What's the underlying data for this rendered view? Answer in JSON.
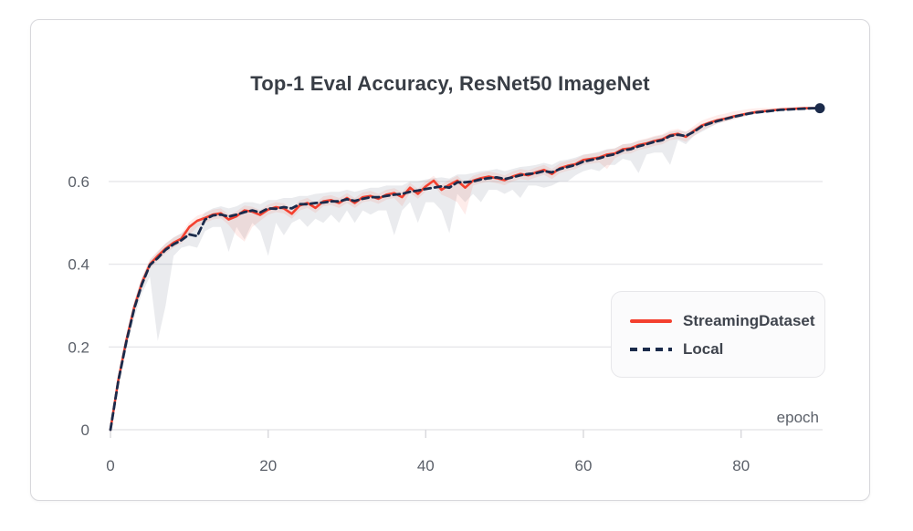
{
  "card": {
    "background": "#ffffff",
    "border_color": "#d8d8dc"
  },
  "chart_data": {
    "type": "line",
    "title": "Top-1 Eval Accuracy, ResNet50 ImageNet",
    "xlabel": "epoch",
    "ylabel": "",
    "x_start": 0,
    "x_step": 1,
    "xlim": [
      0,
      90
    ],
    "ylim": [
      0,
      0.8
    ],
    "grid": "horizontal",
    "x_ticks": [
      "0",
      "20",
      "40",
      "60",
      "80"
    ],
    "x_tick_values": [
      0,
      20,
      40,
      60,
      80
    ],
    "y_ticks": [
      "0",
      "0.2",
      "0.4",
      "0.6"
    ],
    "y_tick_values": [
      0,
      0.2,
      0.4,
      0.6
    ],
    "legend_position": "right-middle",
    "axis_color": "#e7e7ea",
    "tick_color": "#d8d8dc",
    "tick_label_color": "#5b6069",
    "series": [
      {
        "name": "StreamingDataset",
        "color": "#f4402f",
        "style": "solid",
        "values": [
          0.0,
          0.12,
          0.215,
          0.295,
          0.355,
          0.4,
          0.42,
          0.438,
          0.452,
          0.462,
          0.49,
          0.505,
          0.512,
          0.52,
          0.523,
          0.508,
          0.516,
          0.53,
          0.527,
          0.519,
          0.532,
          0.538,
          0.535,
          0.522,
          0.542,
          0.548,
          0.536,
          0.552,
          0.555,
          0.548,
          0.56,
          0.548,
          0.562,
          0.565,
          0.558,
          0.568,
          0.572,
          0.562,
          0.585,
          0.57,
          0.588,
          0.602,
          0.58,
          0.592,
          0.602,
          0.585,
          0.602,
          0.608,
          0.612,
          0.608,
          0.603,
          0.612,
          0.618,
          0.615,
          0.622,
          0.628,
          0.618,
          0.632,
          0.638,
          0.642,
          0.652,
          0.655,
          0.658,
          0.665,
          0.668,
          0.678,
          0.68,
          0.688,
          0.692,
          0.698,
          0.702,
          0.712,
          0.715,
          0.708,
          0.722,
          0.735,
          0.742,
          0.748,
          0.752,
          0.757,
          0.761,
          0.765,
          0.768,
          0.77,
          0.772,
          0.774,
          0.775,
          0.776,
          0.777,
          0.777,
          0.777
        ]
      },
      {
        "name": "Local",
        "color": "#1b2b4b",
        "style": "dashed",
        "values": [
          0.0,
          0.118,
          0.212,
          0.292,
          0.352,
          0.398,
          0.415,
          0.435,
          0.448,
          0.458,
          0.472,
          0.468,
          0.508,
          0.518,
          0.52,
          0.515,
          0.52,
          0.526,
          0.53,
          0.525,
          0.535,
          0.534,
          0.538,
          0.535,
          0.545,
          0.545,
          0.548,
          0.549,
          0.552,
          0.552,
          0.557,
          0.553,
          0.558,
          0.562,
          0.562,
          0.565,
          0.568,
          0.57,
          0.575,
          0.578,
          0.582,
          0.585,
          0.588,
          0.585,
          0.598,
          0.598,
          0.6,
          0.605,
          0.608,
          0.61,
          0.606,
          0.61,
          0.615,
          0.618,
          0.62,
          0.625,
          0.622,
          0.63,
          0.635,
          0.64,
          0.648,
          0.652,
          0.656,
          0.662,
          0.666,
          0.675,
          0.678,
          0.685,
          0.69,
          0.696,
          0.7,
          0.71,
          0.713,
          0.71,
          0.72,
          0.733,
          0.74,
          0.746,
          0.751,
          0.756,
          0.76,
          0.764,
          0.767,
          0.769,
          0.771,
          0.773,
          0.774,
          0.775,
          0.776,
          0.777,
          0.777
        ]
      }
    ],
    "bands": [
      {
        "name": "local-uncertainty-band",
        "color": "rgba(108,115,138,0.14)",
        "lower": [
          0.0,
          0.1,
          0.19,
          0.27,
          0.33,
          0.37,
          0.215,
          0.3,
          0.42,
          0.44,
          0.445,
          0.44,
          0.48,
          0.49,
          0.49,
          0.43,
          0.49,
          0.46,
          0.5,
          0.48,
          0.42,
          0.5,
          0.47,
          0.5,
          0.51,
          0.49,
          0.51,
          0.5,
          0.52,
          0.5,
          0.53,
          0.5,
          0.53,
          0.52,
          0.53,
          0.53,
          0.47,
          0.53,
          0.55,
          0.5,
          0.55,
          0.55,
          0.53,
          0.475,
          0.57,
          0.55,
          0.57,
          0.55,
          0.58,
          0.58,
          0.57,
          0.58,
          0.56,
          0.59,
          0.59,
          0.585,
          0.59,
          0.6,
          0.6,
          0.615,
          0.625,
          0.63,
          0.625,
          0.64,
          0.64,
          0.655,
          0.65,
          0.62,
          0.665,
          0.67,
          0.67,
          0.64,
          0.7,
          0.69,
          0.71,
          0.72,
          0.73,
          0.74,
          0.745,
          0.75,
          0.755,
          0.76,
          0.764,
          0.767,
          0.769,
          0.771,
          0.773,
          0.774,
          0.775,
          0.776,
          0.777
        ],
        "upper": [
          0.0,
          0.13,
          0.23,
          0.31,
          0.37,
          0.41,
          0.43,
          0.45,
          0.465,
          0.475,
          0.49,
          0.5,
          0.525,
          0.535,
          0.54,
          0.535,
          0.54,
          0.55,
          0.55,
          0.545,
          0.555,
          0.555,
          0.56,
          0.56,
          0.565,
          0.565,
          0.57,
          0.572,
          0.575,
          0.575,
          0.58,
          0.575,
          0.58,
          0.585,
          0.585,
          0.59,
          0.59,
          0.59,
          0.6,
          0.6,
          0.605,
          0.608,
          0.61,
          0.607,
          0.617,
          0.617,
          0.62,
          0.625,
          0.627,
          0.63,
          0.625,
          0.63,
          0.635,
          0.637,
          0.64,
          0.645,
          0.64,
          0.65,
          0.653,
          0.658,
          0.665,
          0.668,
          0.672,
          0.678,
          0.68,
          0.69,
          0.692,
          0.698,
          0.702,
          0.708,
          0.712,
          0.72,
          0.723,
          0.72,
          0.728,
          0.74,
          0.746,
          0.752,
          0.756,
          0.76,
          0.764,
          0.768,
          0.77,
          0.772,
          0.774,
          0.775,
          0.776,
          0.777,
          0.778,
          0.778,
          0.778
        ]
      },
      {
        "name": "streaming-uncertainty-band",
        "color": "rgba(244,64,47,0.10)",
        "lower": [
          0.0,
          0.108,
          0.203,
          0.283,
          0.343,
          0.388,
          0.408,
          0.426,
          0.44,
          0.45,
          0.47,
          0.49,
          0.5,
          0.508,
          0.511,
          0.495,
          0.47,
          0.455,
          0.49,
          0.505,
          0.52,
          0.526,
          0.523,
          0.51,
          0.53,
          0.536,
          0.524,
          0.54,
          0.543,
          0.536,
          0.548,
          0.536,
          0.55,
          0.553,
          0.546,
          0.556,
          0.56,
          0.54,
          0.573,
          0.558,
          0.576,
          0.59,
          0.568,
          0.56,
          0.55,
          0.52,
          0.59,
          0.596,
          0.6,
          0.596,
          0.591,
          0.6,
          0.606,
          0.603,
          0.61,
          0.616,
          0.606,
          0.62,
          0.626,
          0.63,
          0.64,
          0.643,
          0.646,
          0.63,
          0.656,
          0.666,
          0.668,
          0.676,
          0.68,
          0.686,
          0.69,
          0.7,
          0.703,
          0.696,
          0.71,
          0.723,
          0.732,
          0.74,
          0.745,
          0.75,
          0.755,
          0.76,
          0.764,
          0.767,
          0.769,
          0.771,
          0.773,
          0.774,
          0.775,
          0.776,
          0.777
        ],
        "upper": [
          0.0,
          0.132,
          0.227,
          0.307,
          0.367,
          0.412,
          0.432,
          0.45,
          0.464,
          0.474,
          0.502,
          0.517,
          0.524,
          0.532,
          0.535,
          0.52,
          0.528,
          0.542,
          0.539,
          0.531,
          0.544,
          0.55,
          0.547,
          0.534,
          0.554,
          0.56,
          0.548,
          0.564,
          0.567,
          0.56,
          0.572,
          0.56,
          0.574,
          0.577,
          0.57,
          0.58,
          0.584,
          0.574,
          0.597,
          0.582,
          0.6,
          0.614,
          0.592,
          0.604,
          0.614,
          0.597,
          0.614,
          0.62,
          0.624,
          0.62,
          0.615,
          0.624,
          0.63,
          0.627,
          0.634,
          0.64,
          0.63,
          0.644,
          0.65,
          0.654,
          0.664,
          0.667,
          0.67,
          0.677,
          0.68,
          0.69,
          0.692,
          0.7,
          0.704,
          0.71,
          0.714,
          0.724,
          0.727,
          0.72,
          0.734,
          0.747,
          0.754,
          0.76,
          0.764,
          0.769,
          0.772,
          0.775,
          0.777,
          0.778,
          0.778,
          0.779,
          0.779,
          0.779,
          0.779,
          0.779,
          0.778
        ]
      }
    ],
    "end_marker": {
      "x": 90,
      "y": 0.777,
      "color": "#1b2b4b"
    }
  }
}
